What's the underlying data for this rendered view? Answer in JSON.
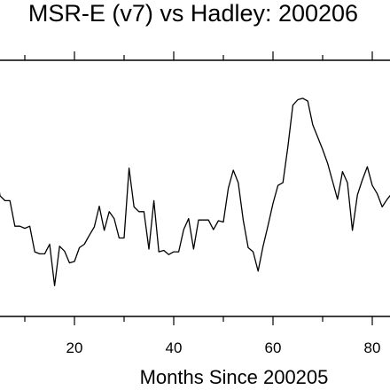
{
  "chart_data": {
    "type": "line",
    "title": "MSR-E (v7) vs Hadley: 200206",
    "xlabel": "Months Since 200205",
    "ylabel": "",
    "xlim": [
      0,
      84
    ],
    "x_ticks": [
      20,
      40,
      60,
      80
    ],
    "tick_labels": [
      "20",
      "40",
      "60",
      "80"
    ],
    "grid": false,
    "series": [
      {
        "x": [
          0,
          1,
          2,
          3,
          4,
          5,
          6,
          7,
          8,
          9,
          10,
          11,
          12,
          13,
          14,
          15,
          16,
          17,
          18,
          19,
          20,
          21,
          22,
          23,
          24,
          25,
          26,
          27,
          28,
          29,
          30,
          31,
          32,
          33,
          34,
          35,
          36,
          37,
          38,
          39,
          40,
          41,
          42,
          43,
          44,
          45,
          46,
          47,
          48,
          49,
          50,
          51,
          52,
          53,
          54,
          55,
          56,
          57,
          58,
          59,
          60,
          61,
          62,
          63,
          64,
          65,
          66,
          67,
          68,
          69,
          70,
          71,
          72,
          73,
          74,
          75,
          76,
          77,
          78,
          79,
          80,
          81,
          82,
          83,
          84
        ],
        "values": [
          0.98,
          1.02,
          1.02,
          0.99,
          0.42,
          -0.05,
          -0.12,
          -0.12,
          -0.49,
          -0.49,
          -0.52,
          -0.49,
          -0.86,
          -0.89,
          -0.89,
          -0.75,
          -1.35,
          -0.78,
          -0.85,
          -1.02,
          -1.0,
          -0.8,
          -0.75,
          -0.62,
          -0.5,
          -0.2,
          -0.55,
          -0.28,
          -0.38,
          -0.66,
          -0.66,
          0.35,
          -0.21,
          -0.28,
          -0.28,
          -0.82,
          -0.12,
          -0.86,
          -0.84,
          -0.9,
          -0.86,
          -0.86,
          -0.54,
          -0.38,
          -0.82,
          -0.4,
          -0.4,
          -0.4,
          -0.54,
          -0.41,
          -0.43,
          0.06,
          0.32,
          0.14,
          -0.4,
          -0.8,
          -0.86,
          -1.14,
          -0.78,
          -0.48,
          -0.16,
          0.1,
          0.14,
          0.66,
          1.26,
          1.34,
          1.36,
          1.32,
          0.98,
          0.8,
          0.62,
          0.42,
          0.16,
          -0.1,
          0.3,
          0.14,
          -0.55,
          -0.04,
          0.18,
          0.37,
          0.1,
          -0.02,
          -0.21,
          -0.1,
          -0.01
        ]
      }
    ]
  }
}
